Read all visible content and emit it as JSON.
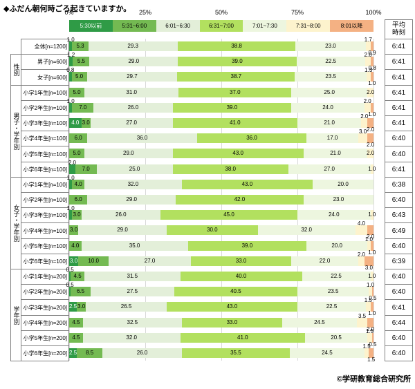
{
  "avg_header": "平均時刻",
  "credit": "©学研教育総合研究所",
  "chart_data": {
    "type": "bar",
    "variant": "horizontal-stacked-100pct",
    "title": "◆ふだん朝何時ごろ起きていますか。",
    "value_unit": "%",
    "xlim": [
      0,
      100
    ],
    "x_ticks": [
      "0%",
      "25%",
      "50%",
      "75%",
      "100%"
    ],
    "categories": [
      "5:30以前",
      "5:31~6:00",
      "6:01~6:30",
      "6:31~7:00",
      "7:01~7:30",
      "7:31~8:00",
      "8:01以降"
    ],
    "colors": [
      "#2f9b46",
      "#74ba52",
      "#e3efd9",
      "#b2e05f",
      "#edf6df",
      "#fdf3cd",
      "#f4b183"
    ],
    "groups": [
      {
        "label": "",
        "span": 1
      },
      {
        "label": "性別",
        "span": 2
      },
      {
        "label": "男子・学年別",
        "span": 6
      },
      {
        "label": "女子・学年別",
        "span": 6
      },
      {
        "label": "学年別",
        "span": 6
      }
    ],
    "rows": [
      {
        "group": "",
        "label": "全体[n=1200]",
        "values": [
          1.0,
          5.3,
          29.3,
          38.8,
          23.0,
          1.7,
          0.9
        ],
        "avg": "6:41"
      },
      {
        "group": "性別",
        "label": "男子[n=600]",
        "values": [
          1.2,
          5.5,
          29.0,
          39.0,
          22.5,
          2.0,
          0.8
        ],
        "avg": "6:41"
      },
      {
        "group": "性別",
        "label": "女子[n=600]",
        "values": [
          0.8,
          5.0,
          29.7,
          38.7,
          23.5,
          1.3,
          1.0
        ],
        "avg": "6:41"
      },
      {
        "group": "男子・学年別",
        "label": "小学1年生[n=100]",
        "values": [
          0,
          5.0,
          31.0,
          37.0,
          25.0,
          2.0,
          0
        ],
        "avg": "6:41"
      },
      {
        "group": "男子・学年別",
        "label": "小学2年生[n=100]",
        "values": [
          1.0,
          7.0,
          26.0,
          39.0,
          24.0,
          2.0,
          1.0
        ],
        "avg": "6:41"
      },
      {
        "group": "男子・学年別",
        "label": "小学3年生[n=100]",
        "values": [
          4.0,
          3.0,
          27.0,
          41.0,
          21.0,
          2.0,
          2.0
        ],
        "avg": "6:41"
      },
      {
        "group": "男子・学年別",
        "label": "小学4年生[n=100]",
        "values": [
          0,
          6.0,
          36.0,
          36.0,
          17.0,
          3.0,
          2.0
        ],
        "avg": "6:40"
      },
      {
        "group": "男子・学年別",
        "label": "小学5年生[n=100]",
        "values": [
          0,
          5.0,
          29.0,
          43.0,
          21.0,
          2.0,
          0
        ],
        "avg": "6:40"
      },
      {
        "group": "男子・学年別",
        "label": "小学6年生[n=100]",
        "values": [
          2.0,
          7.0,
          25.0,
          38.0,
          27.0,
          1.0,
          0
        ],
        "avg": "6:41"
      },
      {
        "group": "女子・学年別",
        "label": "小学1年生[n=100]",
        "values": [
          1.0,
          4.0,
          32.0,
          43.0,
          20.0,
          0,
          0
        ],
        "avg": "6:38"
      },
      {
        "group": "女子・学年別",
        "label": "小学2年生[n=100]",
        "values": [
          0,
          6.0,
          29.0,
          42.0,
          23.0,
          0,
          0
        ],
        "avg": "6:40"
      },
      {
        "group": "女子・学年別",
        "label": "小学3年生[n=100]",
        "values": [
          1.0,
          3.0,
          26.0,
          45.0,
          24.0,
          1.0,
          0
        ],
        "avg": "6:43"
      },
      {
        "group": "女子・学年別",
        "label": "小学4年生[n=100]",
        "values": [
          0,
          3.0,
          29.0,
          30.0,
          32.0,
          4.0,
          2.0
        ],
        "avg": "6:49"
      },
      {
        "group": "女子・学年別",
        "label": "小学5年生[n=100]",
        "values": [
          0,
          4.0,
          35.0,
          39.0,
          20.0,
          1.0,
          1.0
        ],
        "avg": "6:40"
      },
      {
        "group": "女子・学年別",
        "label": "小学6年生[n=100]",
        "values": [
          3.0,
          10.0,
          27.0,
          33.0,
          22.0,
          2.0,
          3.0
        ],
        "avg": "6:39"
      },
      {
        "group": "学年別",
        "label": "小学1年生[n=200]",
        "values": [
          0.5,
          4.5,
          31.5,
          40.0,
          22.5,
          1.0,
          0
        ],
        "avg": "6:40"
      },
      {
        "group": "学年別",
        "label": "小学2年生[n=200]",
        "values": [
          0.5,
          6.5,
          27.5,
          40.5,
          23.5,
          1.0,
          0.5
        ],
        "avg": "6:40"
      },
      {
        "group": "学年別",
        "label": "小学3年生[n=200]",
        "values": [
          2.5,
          3.0,
          26.5,
          43.0,
          22.5,
          1.5,
          1.0
        ],
        "avg": "6:41"
      },
      {
        "group": "学年別",
        "label": "小学4年生[n=200]",
        "values": [
          0,
          4.5,
          32.5,
          33.0,
          24.5,
          3.5,
          2.0
        ],
        "avg": "6:44"
      },
      {
        "group": "学年別",
        "label": "小学5年生[n=200]",
        "values": [
          0,
          4.5,
          32.0,
          41.0,
          20.5,
          1.5,
          0.5
        ],
        "avg": "6:40"
      },
      {
        "group": "学年別",
        "label": "小学6年生[n=200]",
        "values": [
          2.5,
          8.5,
          26.0,
          35.5,
          24.5,
          1.5,
          1.5
        ],
        "avg": "6:40"
      }
    ]
  }
}
